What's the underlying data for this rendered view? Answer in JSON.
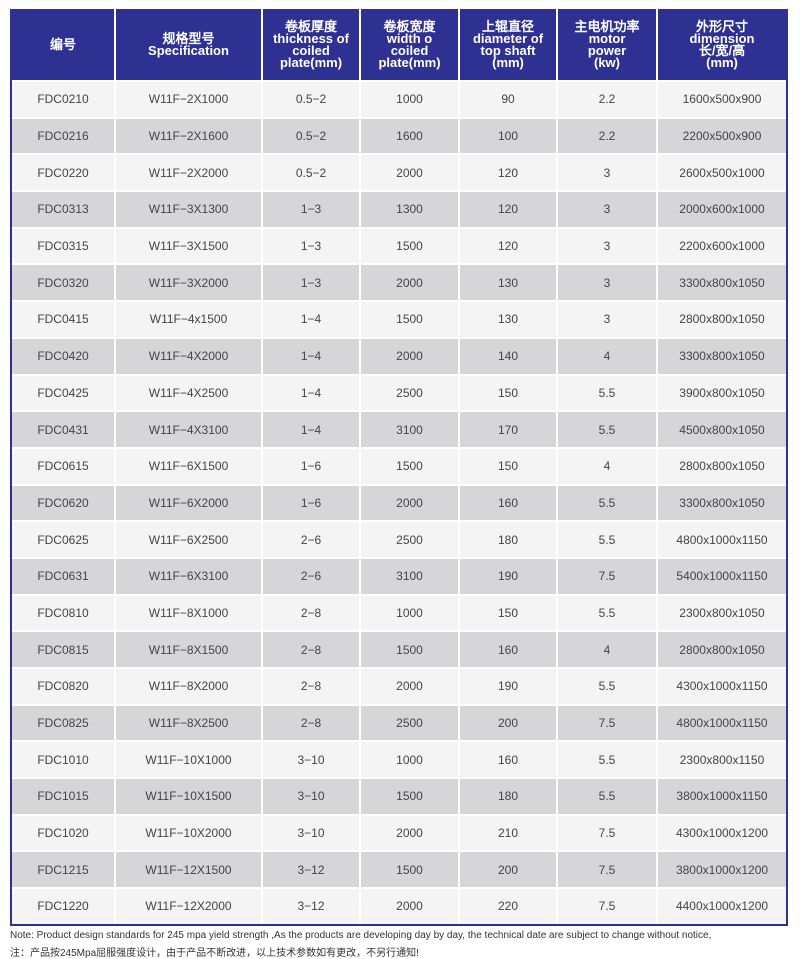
{
  "colors": {
    "header": "#2e3192",
    "row_light": "#f4f4f4",
    "row_dark": "#d6d6d8"
  },
  "headers": [
    [
      "编号"
    ],
    [
      "规格型号",
      "Specification"
    ],
    [
      "卷板厚度",
      "thickness of",
      "coiled",
      "plate(mm)"
    ],
    [
      "卷板宽度",
      "width o",
      "coiled",
      "plate(mm)"
    ],
    [
      "上辊直径",
      "diameter of",
      "top shaft",
      "(mm)"
    ],
    [
      "主电机功率",
      "motor",
      "power",
      "(kw)"
    ],
    [
      "外形尺寸",
      "dimension",
      "长/宽/高",
      "(mm)"
    ]
  ],
  "rows": [
    [
      "FDC0210",
      "W11F−2X1000",
      "0.5−2",
      "1000",
      "90",
      "2.2",
      "1600x500x900"
    ],
    [
      "FDC0216",
      "W11F−2X1600",
      "0.5−2",
      "1600",
      "100",
      "2.2",
      "2200x500x900"
    ],
    [
      "FDC0220",
      "W11F−2X2000",
      "0.5−2",
      "2000",
      "120",
      "3",
      "2600x500x1000"
    ],
    [
      "FDC0313",
      "W11F−3X1300",
      "1−3",
      "1300",
      "120",
      "3",
      "2000x600x1000"
    ],
    [
      "FDC0315",
      "W11F−3X1500",
      "1−3",
      "1500",
      "120",
      "3",
      "2200x600x1000"
    ],
    [
      "FDC0320",
      "W11F−3X2000",
      "1−3",
      "2000",
      "130",
      "3",
      "3300x800x1050"
    ],
    [
      "FDC0415",
      "W11F−4x1500",
      "1−4",
      "1500",
      "130",
      "3",
      "2800x800x1050"
    ],
    [
      "FDC0420",
      "W11F−4X2000",
      "1−4",
      "2000",
      "140",
      "4",
      "3300x800x1050"
    ],
    [
      "FDC0425",
      "W11F−4X2500",
      "1−4",
      "2500",
      "150",
      "5.5",
      "3900x800x1050"
    ],
    [
      "FDC0431",
      "W11F−4X3100",
      "1−4",
      "3100",
      "170",
      "5.5",
      "4500x800x1050"
    ],
    [
      "FDC0615",
      "W11F−6X1500",
      "1−6",
      "1500",
      "150",
      "4",
      "2800x800x1050"
    ],
    [
      "FDC0620",
      "W11F−6X2000",
      "1−6",
      "2000",
      "160",
      "5.5",
      "3300x800x1050"
    ],
    [
      "FDC0625",
      "W11F−6X2500",
      "2−6",
      "2500",
      "180",
      "5.5",
      "4800x1000x1150"
    ],
    [
      "FDC0631",
      "W11F−6X3100",
      "2−6",
      "3100",
      "190",
      "7.5",
      "5400x1000x1150"
    ],
    [
      "FDC0810",
      "W11F−8X1000",
      "2−8",
      "1000",
      "150",
      "5.5",
      "2300x800x1050"
    ],
    [
      "FDC0815",
      "W11F−8X1500",
      "2−8",
      "1500",
      "160",
      "4",
      "2800x800x1050"
    ],
    [
      "FDC0820",
      "W11F−8X2000",
      "2−8",
      "2000",
      "190",
      "5.5",
      "4300x1000x1150"
    ],
    [
      "FDC0825",
      "W11F−8X2500",
      "2−8",
      "2500",
      "200",
      "7.5",
      "4800x1000x1150"
    ],
    [
      "FDC1010",
      "W11F−10X1000",
      "3−10",
      "1000",
      "160",
      "5.5",
      "2300x800x1150"
    ],
    [
      "FDC1015",
      "W11F−10X1500",
      "3−10",
      "1500",
      "180",
      "5.5",
      "3800x1000x1150"
    ],
    [
      "FDC1020",
      "W11F−10X2000",
      "3−10",
      "2000",
      "210",
      "7.5",
      "4300x1000x1200"
    ],
    [
      "FDC1215",
      "W11F−12X1500",
      "3−12",
      "1500",
      "200",
      "7.5",
      "3800x1000x1200"
    ],
    [
      "FDC1220",
      "W11F−12X2000",
      "3−12",
      "2000",
      "220",
      "7.5",
      "4400x1000x1200"
    ]
  ],
  "notes": {
    "en": "Note: Product design standards for 245 mpa yield strength ,As the products are developing day by day, the technical date are subject to change without notice,",
    "zh": "注：产品按245Mpa屈服强度设计，由于产品不断改进，以上技术参数如有更改，不另行通知!"
  }
}
